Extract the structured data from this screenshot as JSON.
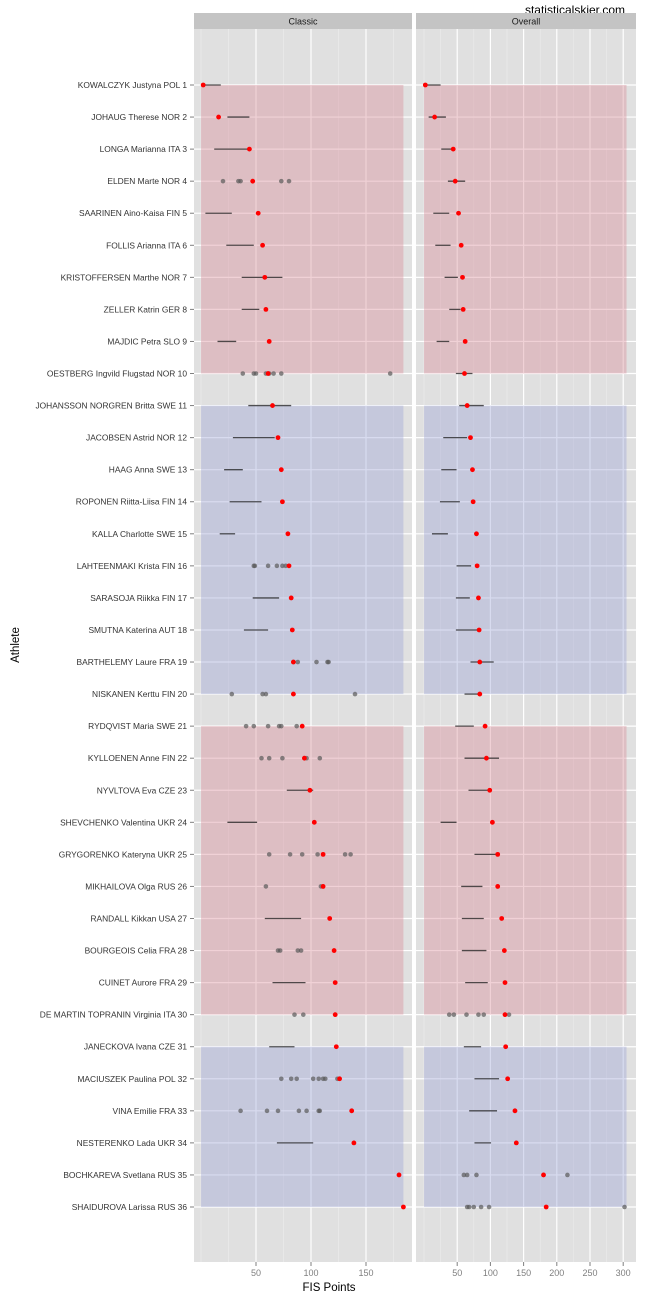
{
  "chart_data": {
    "type": "scatter",
    "title": "",
    "watermark": "statisticalskier.com",
    "xlabel": "FIS Points",
    "ylabel": "Athlete",
    "grid": true,
    "legend": "none",
    "colors": {
      "panel_bg": "#e0e0e0",
      "strip_bg": "#c4c4c4",
      "band_red": "#e4bfc4",
      "band_blue": "#c6c9e0",
      "point_red": "#ff0000",
      "point_grey": "#595959",
      "range_line": "#1a1a1a"
    },
    "bands": [
      {
        "from": 1,
        "to": 10,
        "color": "red"
      },
      {
        "from": 11,
        "to": 20,
        "color": "blue"
      },
      {
        "from": 21,
        "to": 30,
        "color": "red"
      },
      {
        "from": 31,
        "to": 36,
        "color": "blue"
      }
    ],
    "athletes": [
      "KOWALCZYK Justyna POL 1",
      "JOHAUG Therese NOR 2",
      "LONGA Marianna ITA 3",
      "ELDEN Marte NOR 4",
      "SAARINEN Aino-Kaisa FIN 5",
      "FOLLIS Arianna ITA 6",
      "KRISTOFFERSEN Marthe NOR 7",
      "ZELLER Katrin GER 8",
      "MAJDIC Petra SLO 9",
      "OESTBERG Ingvild Flugstad NOR 10",
      "JOHANSSON NORGREN Britta SWE 11",
      "JACOBSEN Astrid NOR 12",
      "HAAG Anna SWE 13",
      "ROPONEN Riitta-Liisa FIN 14",
      "KALLA Charlotte SWE 15",
      "LAHTEENMAKI Krista FIN 16",
      "SARASOJA Riikka FIN 17",
      "SMUTNA Katerina AUT 18",
      "BARTHELEMY Laure FRA 19",
      "NISKANEN Kerttu FIN 20",
      "RYDQVIST Maria SWE 21",
      "KYLLOENEN Anne FIN 22",
      "NYVLTOVA Eva CZE 23",
      "SHEVCHENKO Valentina UKR 24",
      "GRYGORENKO Kateryna UKR 25",
      "MIKHAILOVA Olga RUS 26",
      "RANDALL Kikkan USA 27",
      "BOURGEOIS Celia FRA 28",
      "CUINET Aurore FRA 29",
      "DE MARTIN TOPRANIN Virginia ITA 30",
      "JANECKOVA Ivana CZE 31",
      "MACIUSZEK Paulina POL 32",
      "VINA Emilie FRA 33",
      "NESTERENKO Lada UKR 34",
      "BOCHKAREVA Svetlana RUS 35",
      "SHAIDUROVA Larissa RUS 36"
    ],
    "panels": [
      {
        "name": "Classic",
        "xlim": [
          -6,
          192
        ],
        "xticks": [
          50,
          100,
          150
        ],
        "xtick_labels": [
          "50",
          "100",
          "150"
        ],
        "minor_xticks": [
          0,
          25,
          75,
          125,
          175
        ],
        "band_xmax": 184,
        "current": [
          2,
          16,
          44,
          47,
          52,
          56,
          58,
          59,
          62,
          61,
          65,
          70,
          73,
          74,
          79,
          80,
          82,
          83,
          84,
          84,
          92,
          94,
          99,
          103,
          111,
          111,
          117,
          121,
          122,
          122,
          123,
          126,
          137,
          139,
          180,
          184
        ],
        "ranges": [
          [
            2,
            18
          ],
          [
            24,
            44
          ],
          [
            12,
            43
          ],
          null,
          [
            4,
            28
          ],
          [
            23,
            48
          ],
          [
            37,
            74
          ],
          [
            37,
            53
          ],
          [
            15,
            32
          ],
          null,
          [
            43,
            82
          ],
          [
            29,
            67
          ],
          [
            21,
            38
          ],
          [
            26,
            55
          ],
          [
            17,
            31
          ],
          null,
          [
            47,
            71
          ],
          [
            39,
            61
          ],
          null,
          null,
          null,
          null,
          [
            78,
            102
          ],
          [
            24,
            51
          ],
          null,
          null,
          [
            58,
            91
          ],
          null,
          [
            65,
            95
          ],
          null,
          [
            62,
            85
          ],
          null,
          null,
          [
            69,
            102
          ],
          null,
          null
        ],
        "others": [
          [],
          [],
          [],
          [
            20,
            34,
            36,
            73,
            80
          ],
          [],
          [],
          [],
          [],
          [],
          [
            38,
            48,
            50,
            59,
            62,
            66,
            73,
            172
          ],
          [],
          [],
          [],
          [],
          [],
          [
            48,
            49,
            61,
            69,
            74,
            77
          ],
          [],
          [],
          [
            84,
            88,
            105,
            115,
            116
          ],
          [
            28,
            56,
            59,
            140
          ],
          [
            41,
            48,
            61,
            71,
            73,
            87
          ],
          [
            55,
            62,
            74,
            96,
            108
          ],
          [],
          [],
          [
            62,
            81,
            92,
            106,
            131,
            136
          ],
          [
            59,
            109
          ],
          [],
          [
            70,
            72,
            88,
            91
          ],
          [],
          [
            85,
            93
          ],
          [],
          [
            73,
            82,
            87,
            102,
            107,
            111,
            113,
            124
          ],
          [
            36,
            60,
            70,
            89,
            96,
            107,
            108
          ],
          [],
          [],
          []
        ]
      },
      {
        "name": "Overall",
        "xlim": [
          -12,
          320
        ],
        "xticks": [
          50,
          100,
          150,
          200,
          250,
          300
        ],
        "xtick_labels": [
          "50",
          "100",
          "150",
          "200",
          "250",
          "300"
        ],
        "minor_xticks": [
          0,
          25,
          75,
          125,
          175,
          225,
          275
        ],
        "band_xmax": 305,
        "current": [
          2,
          16,
          44,
          47,
          52,
          56,
          58,
          59,
          62,
          61,
          65,
          70,
          73,
          74,
          79,
          80,
          82,
          83,
          84,
          84,
          92,
          94,
          99,
          103,
          111,
          111,
          117,
          121,
          122,
          122,
          123,
          126,
          137,
          139,
          180,
          184
        ],
        "ranges": [
          [
            2,
            25
          ],
          [
            7,
            33
          ],
          [
            26,
            44
          ],
          [
            36,
            62
          ],
          [
            14,
            38
          ],
          [
            17,
            40
          ],
          [
            31,
            51
          ],
          [
            38,
            55
          ],
          [
            19,
            38
          ],
          [
            48,
            73
          ],
          [
            53,
            90
          ],
          [
            29,
            65
          ],
          [
            26,
            49
          ],
          [
            24,
            54
          ],
          [
            12,
            36
          ],
          [
            49,
            71
          ],
          [
            48,
            69
          ],
          [
            48,
            80
          ],
          [
            70,
            105
          ],
          [
            61,
            84
          ],
          [
            47,
            75
          ],
          [
            61,
            113
          ],
          [
            67,
            100
          ],
          [
            25,
            49
          ],
          [
            76,
            109
          ],
          [
            56,
            88
          ],
          [
            57,
            90
          ],
          [
            57,
            94
          ],
          [
            62,
            96
          ],
          null,
          [
            60,
            86
          ],
          [
            76,
            113
          ],
          [
            68,
            110
          ],
          [
            76,
            101
          ],
          null,
          null
        ],
        "others": [
          [],
          [],
          [],
          [],
          [],
          [],
          [],
          [],
          [],
          [],
          [],
          [],
          [],
          [],
          [],
          [],
          [],
          [],
          [],
          [],
          [],
          [],
          [],
          [],
          [],
          [],
          [],
          [],
          [],
          [
            38,
            45,
            64,
            82,
            90,
            128
          ],
          [],
          [],
          [],
          [],
          [
            60,
            65,
            79,
            216
          ],
          [
            65,
            68,
            75,
            86,
            98,
            302
          ]
        ]
      }
    ]
  }
}
